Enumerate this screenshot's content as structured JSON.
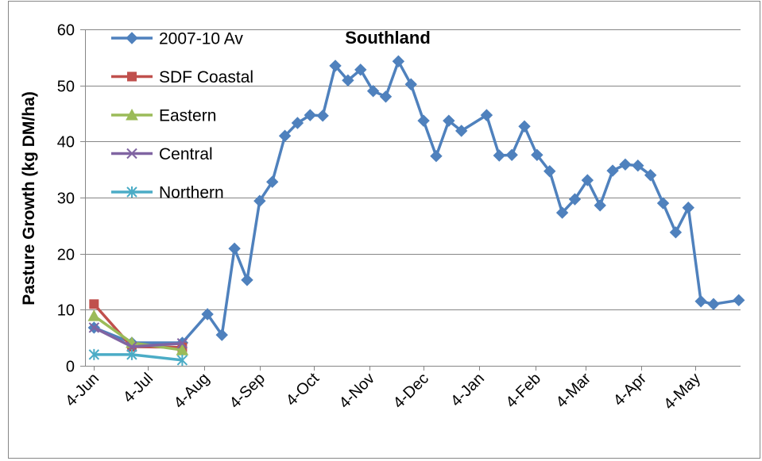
{
  "chart_data": {
    "type": "line",
    "title": "Southland",
    "ylabel": "Pasture Growth (kg DM/ha)",
    "ylim": [
      0,
      60
    ],
    "yticks": [
      0,
      10,
      20,
      30,
      40,
      50,
      60
    ],
    "xlim": [
      "30-May",
      "29-May"
    ],
    "xticks": [
      "4-Jun",
      "4-Jul",
      "4-Aug",
      "4-Sep",
      "4-Oct",
      "4-Nov",
      "4-Dec",
      "4-Jan",
      "4-Feb",
      "4-Mar",
      "4-Apr",
      "4-May"
    ],
    "grid": true,
    "legend_position": "top-left",
    "series": [
      {
        "name": "2007-10 Av",
        "color": "#4F81BD",
        "marker": "diamond",
        "x": [
          "4-Jun",
          "25-Jun",
          "23-Jul",
          "6-Aug",
          "14-Aug",
          "21-Aug",
          "28-Aug",
          "4-Sep",
          "11-Sep",
          "18-Sep",
          "25-Sep",
          "2-Oct",
          "9-Oct",
          "16-Oct",
          "23-Oct",
          "30-Oct",
          "6-Nov",
          "13-Nov",
          "20-Nov",
          "27-Nov",
          "4-Dec",
          "11-Dec",
          "18-Dec",
          "25-Dec",
          "8-Jan",
          "15-Jan",
          "22-Jan",
          "29-Jan",
          "5-Feb",
          "12-Feb",
          "19-Feb",
          "26-Feb",
          "5-Mar",
          "12-Mar",
          "19-Mar",
          "26-Mar",
          "2-Apr",
          "9-Apr",
          "16-Apr",
          "23-Apr",
          "30-Apr",
          "7-May",
          "14-May",
          "28-May"
        ],
        "y": [
          6.8,
          4.1,
          4.1,
          9.2,
          5.5,
          20.9,
          15.3,
          29.4,
          32.8,
          41.0,
          43.3,
          44.7,
          44.6,
          53.5,
          50.9,
          52.8,
          49.0,
          48.0,
          54.3,
          50.2,
          43.7,
          37.4,
          43.7,
          41.9,
          44.7,
          37.5,
          37.6,
          42.7,
          37.6,
          34.7,
          27.3,
          29.7,
          33.1,
          28.6,
          34.8,
          35.9,
          35.7,
          34.0,
          29.0,
          23.8,
          28.2,
          11.5,
          11.0,
          11.7
        ]
      },
      {
        "name": "SDF Coastal",
        "color": "#C0504D",
        "marker": "square",
        "x": [
          "4-Jun",
          "25-Jun",
          "23-Jul"
        ],
        "y": [
          11.0,
          3.4,
          3.3
        ]
      },
      {
        "name": "Eastern",
        "color": "#9BBB59",
        "marker": "triangle",
        "x": [
          "4-Jun",
          "25-Jun",
          "23-Jul"
        ],
        "y": [
          8.9,
          4.1,
          2.8
        ]
      },
      {
        "name": "Central",
        "color": "#8064A2",
        "marker": "x",
        "x": [
          "4-Jun",
          "25-Jun",
          "23-Jul"
        ],
        "y": [
          6.8,
          3.4,
          4.0
        ]
      },
      {
        "name": "Northern",
        "color": "#4BACC6",
        "marker": "star",
        "x": [
          "4-Jun",
          "25-Jun",
          "23-Jul"
        ],
        "y": [
          2.0,
          2.0,
          1.0
        ]
      }
    ]
  }
}
